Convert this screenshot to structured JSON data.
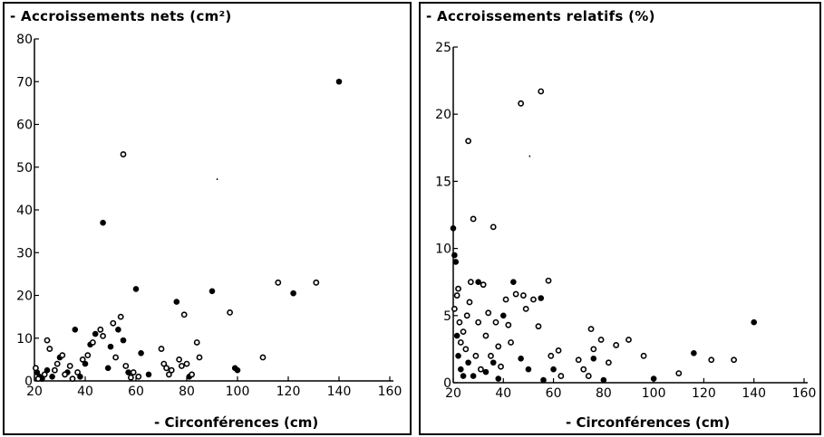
{
  "chart_data": [
    {
      "type": "scatter",
      "title": "- Accroissements nets (cm²)",
      "xlabel": "- Circonférences (cm)",
      "ylabel": "",
      "xlim": [
        20,
        160
      ],
      "ylim": [
        0,
        80
      ],
      "xticks": [
        "20",
        "40",
        "60",
        "80",
        "100",
        "120",
        "140",
        "160"
      ],
      "yticks": [
        "0",
        "10",
        "20",
        "30",
        "40",
        "50",
        "60",
        "70",
        "80"
      ],
      "grid": false,
      "series": [
        {
          "marker": "filled",
          "points": [
            [
              21,
              2
            ],
            [
              22,
              1
            ],
            [
              23,
              0.5
            ],
            [
              25,
              2.5
            ],
            [
              27,
              1
            ],
            [
              30,
              5.5
            ],
            [
              33,
              2
            ],
            [
              36,
              12
            ],
            [
              38,
              1
            ],
            [
              40,
              4
            ],
            [
              42,
              8.5
            ],
            [
              44,
              11
            ],
            [
              47,
              37
            ],
            [
              49,
              3
            ],
            [
              50,
              8
            ],
            [
              53,
              12
            ],
            [
              55,
              9.5
            ],
            [
              57,
              2
            ],
            [
              60,
              21.5
            ],
            [
              62,
              6.5
            ],
            [
              65,
              1.5
            ],
            [
              76,
              18.5
            ],
            [
              81,
              1
            ],
            [
              90,
              21
            ],
            [
              99,
              3
            ],
            [
              100,
              2.5
            ],
            [
              122,
              20.5
            ],
            [
              140,
              70
            ]
          ]
        },
        {
          "marker": "open",
          "points": [
            [
              20.5,
              3
            ],
            [
              21.5,
              0.5
            ],
            [
              24,
              1.5
            ],
            [
              25,
              9.5
            ],
            [
              26,
              7.5
            ],
            [
              28,
              2.5
            ],
            [
              29,
              4
            ],
            [
              31,
              6
            ],
            [
              32,
              1.5
            ],
            [
              34,
              3.5
            ],
            [
              35,
              0.5
            ],
            [
              37,
              2
            ],
            [
              39,
              5
            ],
            [
              41,
              6
            ],
            [
              43,
              9
            ],
            [
              46,
              12
            ],
            [
              47,
              10.5
            ],
            [
              51,
              13.5
            ],
            [
              52,
              5.5
            ],
            [
              54,
              15
            ],
            [
              55,
              53
            ],
            [
              56,
              3.5
            ],
            [
              58,
              0.8
            ],
            [
              59,
              2
            ],
            [
              61,
              1
            ],
            [
              70,
              7.5
            ],
            [
              71,
              4
            ],
            [
              72,
              3
            ],
            [
              73,
              1.5
            ],
            [
              74,
              2.5
            ],
            [
              77,
              5
            ],
            [
              78,
              3.5
            ],
            [
              79,
              15.5
            ],
            [
              80,
              4
            ],
            [
              82,
              1.5
            ],
            [
              84,
              9
            ],
            [
              85,
              5.5
            ],
            [
              97,
              16
            ],
            [
              110,
              5.5
            ],
            [
              116,
              23
            ],
            [
              131,
              23
            ]
          ]
        }
      ],
      "annotations": [
        "."
      ]
    },
    {
      "type": "scatter",
      "title": "- Accroissements relatifs (%)",
      "xlabel": "- Circonférences (cm)",
      "ylabel": "",
      "xlim": [
        20,
        160
      ],
      "ylim": [
        0,
        25
      ],
      "xticks": [
        "20",
        "40",
        "60",
        "80",
        "100",
        "120",
        "140",
        "160"
      ],
      "yticks": [
        "0",
        "5",
        "10",
        "15",
        "20",
        "25"
      ],
      "grid": false,
      "series": [
        {
          "marker": "filled",
          "points": [
            [
              20,
              11.5
            ],
            [
              20.5,
              9.5
            ],
            [
              21,
              9
            ],
            [
              21.5,
              3.5
            ],
            [
              22,
              2
            ],
            [
              23,
              1
            ],
            [
              24,
              0.5
            ],
            [
              26,
              1.5
            ],
            [
              28,
              0.5
            ],
            [
              30,
              7.5
            ],
            [
              33,
              0.8
            ],
            [
              36,
              1.5
            ],
            [
              38,
              0.3
            ],
            [
              40,
              5
            ],
            [
              44,
              7.5
            ],
            [
              47,
              1.8
            ],
            [
              50,
              1
            ],
            [
              55,
              6.3
            ],
            [
              56,
              0.2
            ],
            [
              60,
              1
            ],
            [
              76,
              1.8
            ],
            [
              80,
              0.2
            ],
            [
              100,
              0.3
            ],
            [
              116,
              2.2
            ],
            [
              140,
              4.5
            ]
          ]
        },
        {
          "marker": "open",
          "points": [
            [
              20.5,
              5.5
            ],
            [
              21.5,
              6.5
            ],
            [
              22,
              7
            ],
            [
              22.5,
              4.5
            ],
            [
              23,
              3
            ],
            [
              24,
              3.8
            ],
            [
              25,
              2.5
            ],
            [
              25.5,
              5
            ],
            [
              26,
              18
            ],
            [
              26.5,
              6
            ],
            [
              27,
              7.5
            ],
            [
              28,
              12.2
            ],
            [
              29,
              2
            ],
            [
              30,
              4.5
            ],
            [
              31,
              1
            ],
            [
              32,
              7.3
            ],
            [
              33,
              3.5
            ],
            [
              34,
              5.2
            ],
            [
              35,
              2
            ],
            [
              36,
              11.6
            ],
            [
              37,
              4.5
            ],
            [
              38,
              2.7
            ],
            [
              39,
              1.2
            ],
            [
              41,
              6.2
            ],
            [
              42,
              4.3
            ],
            [
              43,
              3
            ],
            [
              45,
              6.6
            ],
            [
              47,
              20.8
            ],
            [
              48,
              6.5
            ],
            [
              49,
              5.5
            ],
            [
              52,
              6.2
            ],
            [
              54,
              4.2
            ],
            [
              55,
              21.7
            ],
            [
              58,
              7.6
            ],
            [
              59,
              2
            ],
            [
              62,
              2.4
            ],
            [
              63,
              0.5
            ],
            [
              70,
              1.7
            ],
            [
              72,
              1
            ],
            [
              74,
              0.5
            ],
            [
              75,
              4
            ],
            [
              76,
              2.5
            ],
            [
              79,
              3.2
            ],
            [
              82,
              1.5
            ],
            [
              85,
              2.8
            ],
            [
              90,
              3.2
            ],
            [
              96,
              2
            ],
            [
              110,
              0.7
            ],
            [
              123,
              1.7
            ],
            [
              132,
              1.7
            ]
          ]
        }
      ],
      "annotations": [
        "."
      ]
    }
  ]
}
